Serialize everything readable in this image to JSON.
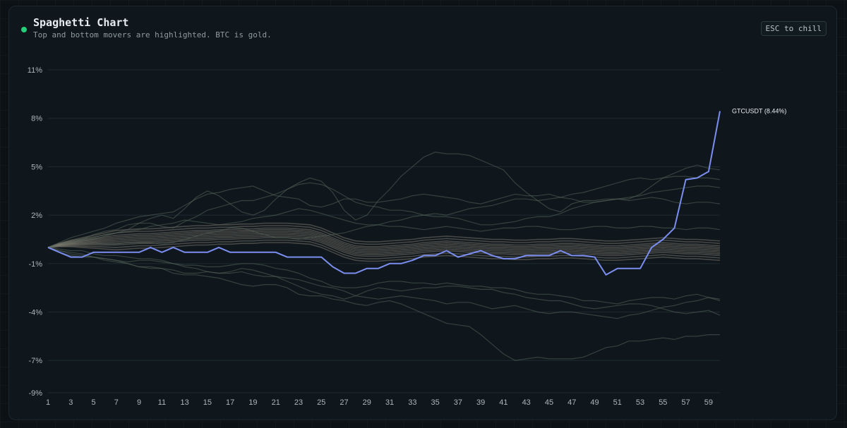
{
  "header": {
    "title": "Spaghetti Chart",
    "subtitle": "Top and bottom movers are highlighted. BTC is gold.",
    "esc_label": "ESC to chill",
    "status_color": "#22d07a"
  },
  "chart_data": {
    "type": "line",
    "title": "Spaghetti Chart",
    "xlabel": "",
    "ylabel": "",
    "x_tick_labels": [
      "1",
      "3",
      "5",
      "7",
      "9",
      "11",
      "13",
      "15",
      "17",
      "19",
      "21",
      "23",
      "25",
      "27",
      "29",
      "31",
      "33",
      "35",
      "37",
      "39",
      "41",
      "43",
      "45",
      "47",
      "49",
      "51",
      "53",
      "55",
      "57",
      "59"
    ],
    "xlim": [
      1,
      60
    ],
    "y_tick_labels": [
      "11%",
      "8%",
      "5%",
      "2%",
      "-1%",
      "-4%",
      "-7%",
      "-9%"
    ],
    "ylim": [
      -9,
      11
    ],
    "grid": true,
    "highlight": {
      "name": "GTCUSDT",
      "label": "GTCUSDT (8.44%)",
      "final_value": 8.44,
      "color": "#7b8ef0",
      "values": [
        0,
        -0.3,
        -0.6,
        -0.6,
        -0.3,
        -0.3,
        -0.3,
        -0.3,
        -0.3,
        0,
        -0.3,
        0,
        -0.3,
        -0.3,
        -0.3,
        0,
        -0.3,
        -0.3,
        -0.3,
        -0.3,
        -0.3,
        -0.6,
        -0.6,
        -0.6,
        -0.6,
        -1.2,
        -1.6,
        -1.6,
        -1.3,
        -1.3,
        -1.0,
        -1.0,
        -0.8,
        -0.5,
        -0.5,
        -0.2,
        -0.6,
        -0.4,
        -0.2,
        -0.5,
        -0.7,
        -0.7,
        -0.5,
        -0.5,
        -0.5,
        -0.2,
        -0.5,
        -0.5,
        -0.6,
        -1.7,
        -1.3,
        -1.3,
        -1.3,
        0,
        0.5,
        1.2,
        4.2,
        4.3,
        4.7,
        8.44
      ]
    },
    "context_series": [
      {
        "values": [
          0,
          0.1,
          0.3,
          0.4,
          0.5,
          0.7,
          0.9,
          1.1,
          1.5,
          1.8,
          2.0,
          1.8,
          2.4,
          3.1,
          3.5,
          3.2,
          2.7,
          2.2,
          2.0,
          2.3,
          3.0,
          3.6,
          4.0,
          4.3,
          4.1,
          3.4,
          2.3,
          1.7,
          2.0,
          2.9,
          3.6,
          4.4,
          5.0,
          5.6,
          5.9,
          5.8,
          5.8,
          5.7,
          5.4,
          5.1,
          4.8,
          4.0,
          3.4,
          2.9,
          2.4,
          2.2,
          2.7,
          2.9,
          2.9,
          3.0,
          3.0,
          3.0,
          3.3,
          3.8,
          4.3,
          4.6,
          4.9,
          5.1,
          4.9,
          4.8
        ]
      },
      {
        "values": [
          0,
          -0.2,
          -0.4,
          -0.5,
          -0.6,
          -0.7,
          -0.8,
          -1.0,
          -1.2,
          -1.2,
          -1.3,
          -1.6,
          -1.7,
          -1.7,
          -1.8,
          -1.9,
          -2.1,
          -2.3,
          -2.4,
          -2.3,
          -2.3,
          -2.5,
          -2.9,
          -3.0,
          -3.0,
          -3.2,
          -3.3,
          -3.5,
          -3.6,
          -3.4,
          -3.3,
          -3.5,
          -3.8,
          -4.1,
          -4.4,
          -4.7,
          -4.8,
          -4.9,
          -5.4,
          -6.0,
          -6.6,
          -7.0,
          -6.9,
          -6.8,
          -6.9,
          -6.9,
          -6.9,
          -6.8,
          -6.5,
          -6.2,
          -6.1,
          -5.8,
          -5.8,
          -5.7,
          -5.6,
          -5.7,
          -5.5,
          -5.5,
          -5.4,
          -5.4
        ]
      },
      {
        "values": [
          0,
          0.3,
          0.6,
          0.8,
          1.0,
          1.2,
          1.5,
          1.7,
          1.9,
          2.0,
          2.1,
          2.2,
          2.6,
          3.0,
          3.3,
          3.4,
          3.6,
          3.7,
          3.8,
          3.5,
          3.2,
          3.1,
          3.0,
          2.6,
          2.5,
          2.7,
          3.0,
          3.0,
          2.8,
          2.8,
          2.9,
          3.0,
          3.2,
          3.3,
          3.2,
          3.1,
          3.0,
          2.8,
          2.7,
          2.9,
          3.1,
          3.3,
          3.2,
          3.2,
          3.3,
          3.1,
          3.0,
          2.8,
          2.8,
          2.9,
          3.0,
          2.9,
          3.0,
          3.1,
          3.0,
          2.8,
          2.7,
          2.8,
          2.8,
          2.7
        ]
      },
      {
        "values": [
          0,
          0.1,
          0.2,
          0.2,
          0.3,
          0.2,
          0.2,
          0.3,
          0.3,
          0.3,
          0.2,
          0.3,
          0.5,
          0.7,
          0.9,
          1.0,
          1.2,
          1.2,
          1.0,
          0.8,
          0.6,
          0.6,
          0.5,
          0.6,
          0.7,
          0.8,
          0.9,
          1.1,
          1.3,
          1.4,
          1.6,
          1.7,
          1.9,
          2.0,
          2.1,
          2.0,
          2.2,
          2.4,
          2.5,
          2.6,
          2.8,
          3.0,
          3.0,
          2.9,
          3.0,
          3.1,
          3.3,
          3.4,
          3.6,
          3.8,
          4.0,
          4.2,
          4.3,
          4.2,
          4.3,
          4.4,
          4.4,
          4.3,
          4.3,
          4.2
        ]
      },
      {
        "values": [
          0,
          -0.3,
          -0.5,
          -0.6,
          -0.6,
          -0.8,
          -0.9,
          -1.0,
          -1.2,
          -1.3,
          -1.3,
          -1.4,
          -1.6,
          -1.6,
          -1.5,
          -1.6,
          -1.5,
          -1.3,
          -1.4,
          -1.6,
          -1.8,
          -2.1,
          -2.4,
          -2.7,
          -2.9,
          -3.0,
          -3.2,
          -3.0,
          -2.7,
          -2.5,
          -2.6,
          -2.7,
          -2.6,
          -2.5,
          -2.5,
          -2.4,
          -2.4,
          -2.5,
          -2.6,
          -2.6,
          -2.8,
          -2.9,
          -3.1,
          -3.2,
          -3.3,
          -3.3,
          -3.5,
          -3.7,
          -3.8,
          -3.7,
          -3.6,
          -3.5,
          -3.5,
          -3.6,
          -3.8,
          -4.0,
          -4.1,
          -4.0,
          -3.9,
          -4.2
        ]
      },
      {
        "values": [
          0,
          -0.2,
          -0.3,
          -0.4,
          -0.6,
          -0.7,
          -0.8,
          -0.9,
          -0.8,
          -0.8,
          -0.9,
          -1.0,
          -1.2,
          -1.3,
          -1.5,
          -1.6,
          -1.6,
          -1.5,
          -1.7,
          -1.8,
          -1.8,
          -1.9,
          -2.0,
          -2.2,
          -2.4,
          -2.5,
          -2.7,
          -3.0,
          -3.1,
          -3.2,
          -3.1,
          -3.0,
          -3.1,
          -3.2,
          -3.3,
          -3.5,
          -3.4,
          -3.4,
          -3.6,
          -3.8,
          -3.7,
          -3.6,
          -3.8,
          -4.0,
          -4.1,
          -4.0,
          -4.0,
          -4.1,
          -4.2,
          -4.3,
          -4.4,
          -4.2,
          -4.1,
          -3.9,
          -3.7,
          -3.6,
          -3.4,
          -3.3,
          -3.1,
          -3.3
        ]
      },
      {
        "values": [
          0,
          0.2,
          0.4,
          0.5,
          0.8,
          1.0,
          1.1,
          1.4,
          1.5,
          1.5,
          1.3,
          1.2,
          1.6,
          1.9,
          2.3,
          2.5,
          2.7,
          2.9,
          2.9,
          3.1,
          3.3,
          3.6,
          3.9,
          4.0,
          3.9,
          3.6,
          3.2,
          2.8,
          2.6,
          2.5,
          2.3,
          2.3,
          2.2,
          2.0,
          1.9,
          1.9,
          1.8,
          1.6,
          1.4,
          1.4,
          1.5,
          1.6,
          1.8,
          1.9,
          1.9,
          2.1,
          2.4,
          2.6,
          2.8,
          2.9,
          3.0,
          3.1,
          3.2,
          3.4,
          3.5,
          3.6,
          3.7,
          3.8,
          3.8,
          3.7
        ]
      },
      {
        "values": [
          0,
          -0.1,
          -0.2,
          -0.2,
          -0.4,
          -0.5,
          -0.5,
          -0.6,
          -0.7,
          -0.7,
          -0.8,
          -1.0,
          -1.1,
          -1.1,
          -1.2,
          -1.2,
          -1.1,
          -1.0,
          -1.0,
          -1.1,
          -1.3,
          -1.4,
          -1.6,
          -1.9,
          -2.1,
          -2.4,
          -2.5,
          -2.5,
          -2.4,
          -2.2,
          -2.1,
          -2.1,
          -2.2,
          -2.2,
          -2.3,
          -2.2,
          -2.3,
          -2.4,
          -2.4,
          -2.5,
          -2.5,
          -2.6,
          -2.8,
          -2.9,
          -2.9,
          -3.0,
          -3.1,
          -3.3,
          -3.3,
          -3.4,
          -3.5,
          -3.3,
          -3.2,
          -3.1,
          -3.1,
          -3.2,
          -3.0,
          -2.9,
          -3.1,
          -3.2
        ]
      },
      {
        "values": [
          0,
          0.2,
          0.3,
          0.5,
          0.6,
          0.8,
          0.9,
          1.0,
          1.1,
          1.3,
          1.4,
          1.5,
          1.7,
          1.6,
          1.5,
          1.4,
          1.5,
          1.6,
          1.8,
          1.9,
          2.0,
          2.2,
          2.4,
          2.3,
          2.1,
          1.9,
          1.7,
          1.5,
          1.4,
          1.4,
          1.3,
          1.3,
          1.2,
          1.1,
          1.2,
          1.3,
          1.2,
          1.1,
          1.0,
          1.1,
          1.2,
          1.2,
          1.3,
          1.3,
          1.2,
          1.1,
          1.1,
          1.2,
          1.3,
          1.3,
          1.2,
          1.2,
          1.3,
          1.3,
          1.2,
          1.2,
          1.1,
          1.2,
          1.2,
          1.1
        ]
      }
    ],
    "band_series": {
      "offsets": [
        0.6,
        0.45,
        0.3,
        0.2,
        0.1,
        0,
        -0.1,
        -0.2,
        -0.3,
        -0.45,
        -0.6
      ],
      "center": [
        0,
        0.15,
        0.25,
        0.3,
        0.35,
        0.4,
        0.45,
        0.5,
        0.55,
        0.55,
        0.6,
        0.65,
        0.7,
        0.75,
        0.75,
        0.8,
        0.8,
        0.85,
        0.85,
        0.9,
        0.9,
        0.9,
        0.85,
        0.8,
        0.6,
        0.3,
        0,
        -0.2,
        -0.25,
        -0.25,
        -0.2,
        -0.15,
        -0.1,
        0,
        0.05,
        0.1,
        0.05,
        0,
        -0.05,
        -0.1,
        -0.1,
        -0.15,
        -0.15,
        -0.1,
        -0.1,
        -0.05,
        -0.05,
        -0.1,
        -0.15,
        -0.2,
        -0.2,
        -0.15,
        -0.1,
        -0.05,
        0,
        -0.05,
        -0.1,
        -0.1,
        -0.15,
        -0.2
      ]
    }
  }
}
